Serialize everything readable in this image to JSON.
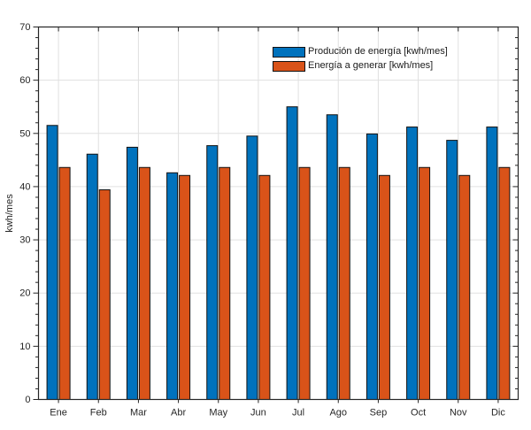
{
  "chart_data": {
    "type": "bar",
    "title": "",
    "xlabel": "",
    "ylabel": "kwh/mes",
    "ylim": [
      0,
      70
    ],
    "yticks": [
      0,
      10,
      20,
      30,
      40,
      50,
      60,
      70
    ],
    "minor_tick_step": 2,
    "grid": true,
    "legend_position": "top-center-right",
    "categories": [
      "Ene",
      "Feb",
      "Mar",
      "Abr",
      "May",
      "Jun",
      "Jul",
      "Ago",
      "Sep",
      "Oct",
      "Nov",
      "Dic"
    ],
    "series": [
      {
        "name": "Produción de energía [kwh/mes]",
        "color": "#0072BD",
        "values": [
          51.5,
          46.1,
          47.4,
          42.6,
          47.7,
          49.5,
          55.0,
          53.5,
          49.9,
          51.2,
          48.7,
          51.2
        ]
      },
      {
        "name": "Energía a generar [kwh/mes]",
        "color": "#D95319",
        "values": [
          43.6,
          39.4,
          43.6,
          42.1,
          43.6,
          42.1,
          43.6,
          43.6,
          42.1,
          43.6,
          42.1,
          43.6
        ]
      }
    ],
    "colors": {
      "axis": "#262626",
      "grid": "#e0e0e0",
      "bar_edge": "#111111",
      "tick_label": "#262626",
      "background": "#ffffff"
    }
  }
}
